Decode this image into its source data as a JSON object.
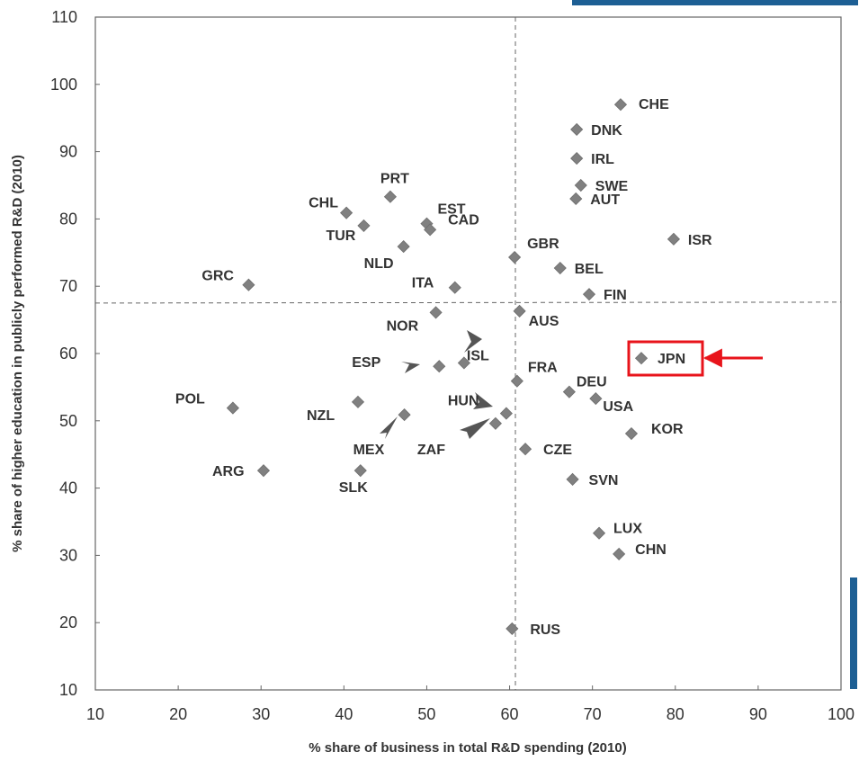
{
  "chart_data": {
    "type": "scatter",
    "title": "",
    "xlabel": "% share of business in total R&D spending (2010)",
    "ylabel": "% share of higher education in publicly performed R&D (2010)",
    "xlim": [
      10,
      100
    ],
    "ylim": [
      10,
      110
    ],
    "xticks": [
      "10",
      "20",
      "30",
      "40",
      "50",
      "60",
      "70",
      "80",
      "90",
      "100"
    ],
    "yticks": [
      "10",
      "20",
      "30",
      "40",
      "50",
      "60",
      "70",
      "80",
      "90",
      "100",
      "110"
    ],
    "grid": false,
    "reference_lines": {
      "x": 60.7,
      "y": 67.5
    },
    "marker_color": "#808080",
    "highlight": {
      "label": "JPN",
      "color": "#e8141b"
    },
    "points": [
      {
        "label": "CHE",
        "x": 73.4,
        "y": 97.0
      },
      {
        "label": "DNK",
        "x": 68.1,
        "y": 93.3
      },
      {
        "label": "IRL",
        "x": 68.1,
        "y": 89.0
      },
      {
        "label": "SWE",
        "x": 68.6,
        "y": 85.0
      },
      {
        "label": "AUT",
        "x": 68.0,
        "y": 83.0
      },
      {
        "label": "ISR",
        "x": 79.8,
        "y": 77.0
      },
      {
        "label": "GBR",
        "x": 60.6,
        "y": 74.3
      },
      {
        "label": "BEL",
        "x": 66.1,
        "y": 72.7
      },
      {
        "label": "FIN",
        "x": 69.6,
        "y": 68.8
      },
      {
        "label": "AUS",
        "x": 61.2,
        "y": 66.3
      },
      {
        "label": "JPN",
        "x": 75.9,
        "y": 59.3
      },
      {
        "label": "FRA",
        "x": 60.9,
        "y": 55.9
      },
      {
        "label": "DEU",
        "x": 67.2,
        "y": 54.3
      },
      {
        "label": "USA",
        "x": 70.4,
        "y": 53.3
      },
      {
        "label": "KOR",
        "x": 74.7,
        "y": 48.1
      },
      {
        "label": "CZE",
        "x": 61.9,
        "y": 45.8
      },
      {
        "label": "SVN",
        "x": 67.6,
        "y": 41.3
      },
      {
        "label": "LUX",
        "x": 70.8,
        "y": 33.3
      },
      {
        "label": "CHN",
        "x": 73.2,
        "y": 30.2
      },
      {
        "label": "RUS",
        "x": 60.3,
        "y": 19.1
      },
      {
        "label": "CHL",
        "x": 40.3,
        "y": 80.9
      },
      {
        "label": "TUR",
        "x": 42.4,
        "y": 79.0
      },
      {
        "label": "PRT",
        "x": 45.6,
        "y": 83.3
      },
      {
        "label": "EST",
        "x": 50.0,
        "y": 79.3
      },
      {
        "label": "CAD",
        "x": 50.4,
        "y": 78.4
      },
      {
        "label": "NLD",
        "x": 47.2,
        "y": 75.9
      },
      {
        "label": "GRC",
        "x": 28.5,
        "y": 70.2
      },
      {
        "label": "ITA",
        "x": 53.4,
        "y": 69.8
      },
      {
        "label": "NOR",
        "x": 51.1,
        "y": 66.1
      },
      {
        "label": "ESP",
        "x": 51.5,
        "y": 58.1
      },
      {
        "label": "ISL",
        "x": 54.5,
        "y": 58.6
      },
      {
        "label": "HUN",
        "x": 59.6,
        "y": 51.1
      },
      {
        "label": "ZAF",
        "x": 58.3,
        "y": 49.6
      },
      {
        "label": "POL",
        "x": 26.6,
        "y": 51.9
      },
      {
        "label": "NZL",
        "x": 41.7,
        "y": 52.8
      },
      {
        "label": "MEX",
        "x": 47.3,
        "y": 50.9
      },
      {
        "label": "ARG",
        "x": 30.3,
        "y": 42.6
      },
      {
        "label": "SLK",
        "x": 42.0,
        "y": 42.6
      }
    ]
  }
}
